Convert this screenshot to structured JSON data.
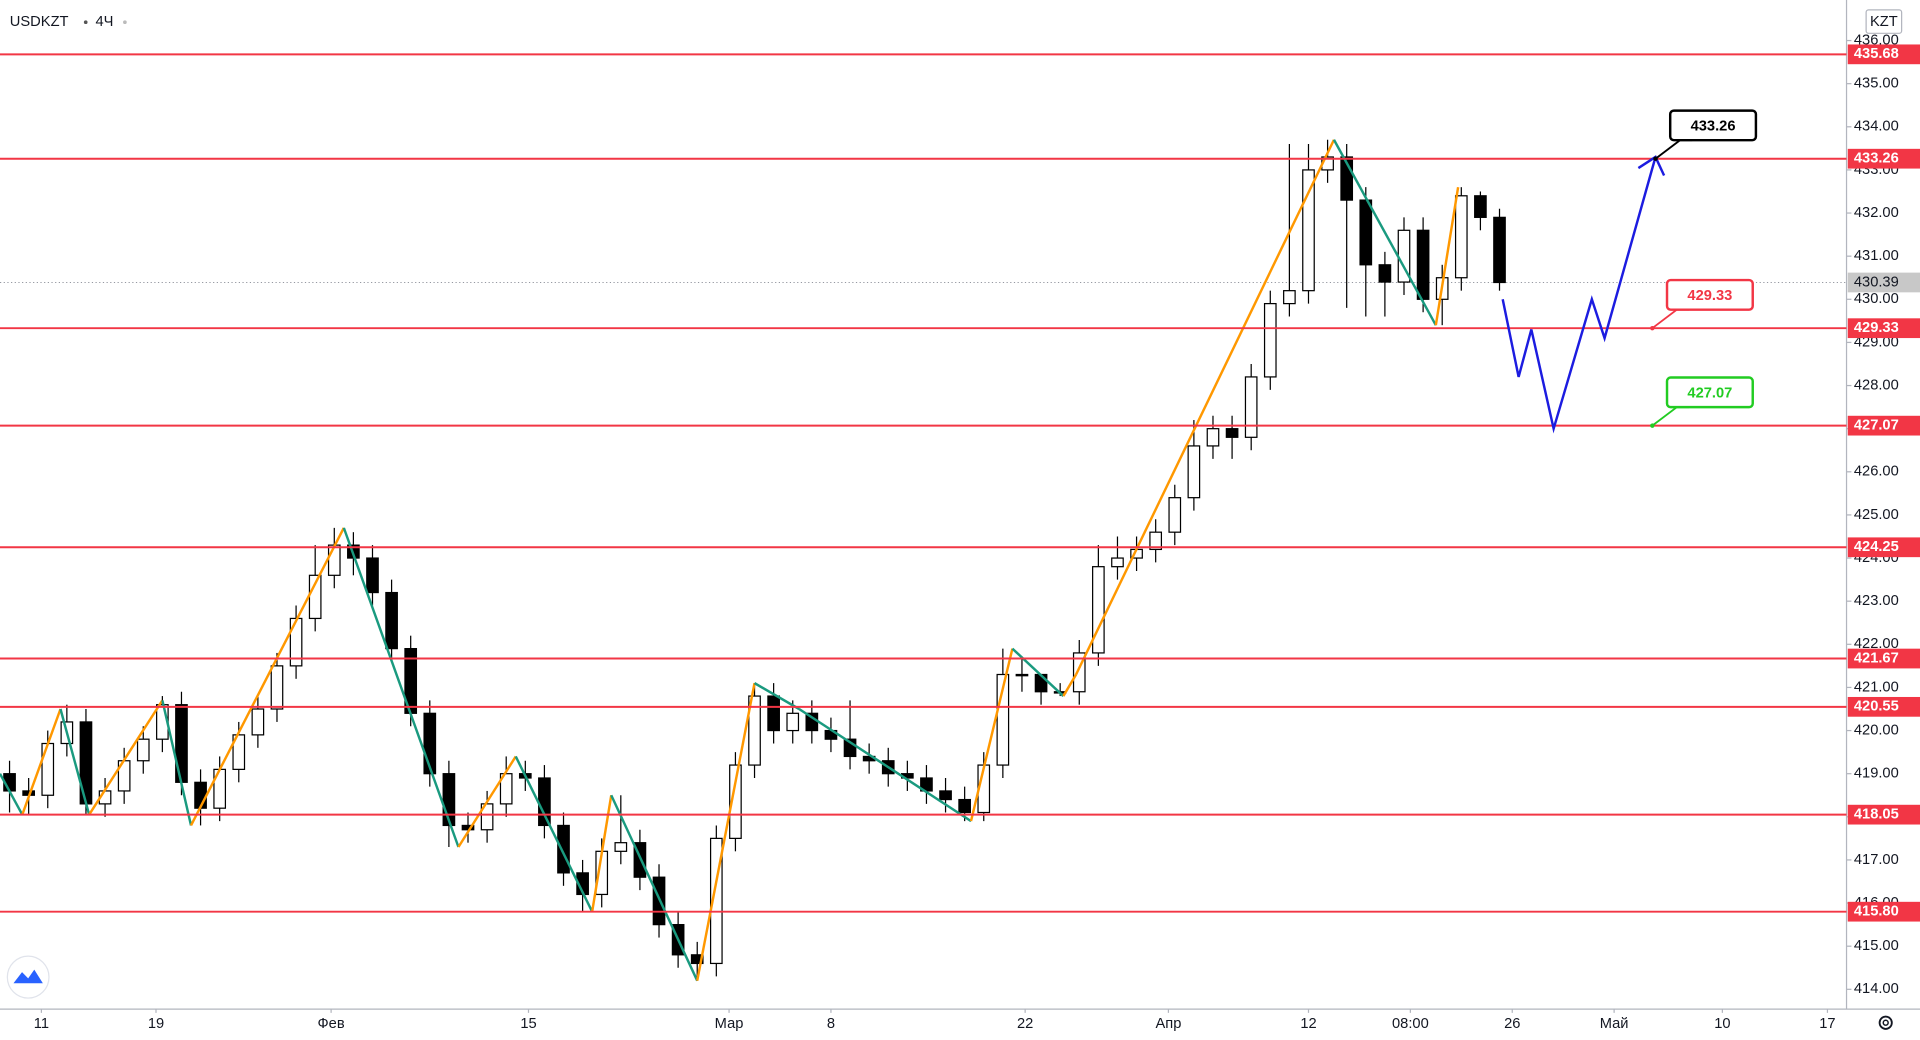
{
  "chart_data": {
    "type": "candlestick",
    "title": "USDKZT",
    "interval": "4Ч",
    "currency": "KZT",
    "x": [
      3,
      9,
      15,
      21,
      27,
      33,
      39,
      45,
      51,
      57,
      63,
      69,
      75,
      81,
      87,
      93,
      99,
      105,
      111,
      117,
      123,
      129,
      135,
      141,
      147,
      153,
      159,
      165,
      171,
      177,
      183,
      189,
      195,
      201,
      207,
      213,
      219,
      225,
      231,
      237,
      243,
      249,
      255,
      261,
      267,
      273,
      279,
      285,
      291,
      297,
      303,
      309,
      315,
      321,
      327,
      333,
      339,
      345,
      351,
      357,
      363,
      369,
      375,
      381,
      387,
      393,
      399,
      405,
      411,
      417,
      423,
      429,
      435,
      441,
      447,
      453,
      459,
      465,
      471
    ],
    "open": [
      419.0,
      418.6,
      418.5,
      419.7,
      420.2,
      418.3,
      418.6,
      419.3,
      419.8,
      420.6,
      418.8,
      418.2,
      419.1,
      419.9,
      420.5,
      421.5,
      422.6,
      423.6,
      424.3,
      424.0,
      423.2,
      421.9,
      420.4,
      419.0,
      417.8,
      417.7,
      418.3,
      419.0,
      418.9,
      417.8,
      416.7,
      416.2,
      417.2,
      417.4,
      416.6,
      415.5,
      414.8,
      414.6,
      417.5,
      419.2,
      420.8,
      420.0,
      420.4,
      420.0,
      419.8,
      419.4,
      419.3,
      419.0,
      418.9,
      418.6,
      418.4,
      418.1,
      419.2,
      421.3,
      421.3,
      420.9,
      420.9,
      421.8,
      423.8,
      424.0,
      424.2,
      424.6,
      425.4,
      426.6,
      427.0,
      426.8,
      428.2,
      429.9,
      430.2,
      433.0,
      433.3,
      432.3,
      430.8,
      430.4,
      431.6,
      430.0,
      430.5,
      432.4,
      431.9
    ],
    "high": [
      419.3,
      418.9,
      420.0,
      420.6,
      420.5,
      418.9,
      419.6,
      420.1,
      420.8,
      420.9,
      419.1,
      419.4,
      420.2,
      420.8,
      421.8,
      422.9,
      424.3,
      424.7,
      424.6,
      424.3,
      423.5,
      422.2,
      420.7,
      419.3,
      418.1,
      418.6,
      419.4,
      419.3,
      419.2,
      418.1,
      417.0,
      417.5,
      418.5,
      417.7,
      416.9,
      415.8,
      415.1,
      417.8,
      419.5,
      421.1,
      421.1,
      420.7,
      420.7,
      420.3,
      420.7,
      419.7,
      419.6,
      419.3,
      419.2,
      418.9,
      418.7,
      419.5,
      421.9,
      421.7,
      421.3,
      421.1,
      422.1,
      424.3,
      424.5,
      424.5,
      424.9,
      425.7,
      427.2,
      427.3,
      427.3,
      428.5,
      430.2,
      433.6,
      433.6,
      433.7,
      433.6,
      432.6,
      431.1,
      431.9,
      431.9,
      430.8,
      432.6,
      432.5,
      432.1
    ],
    "low": [
      418.1,
      418.05,
      418.2,
      419.4,
      418.05,
      418.0,
      418.3,
      419.0,
      419.5,
      418.5,
      417.8,
      417.9,
      418.8,
      419.6,
      420.2,
      421.2,
      422.3,
      423.3,
      423.6,
      422.9,
      421.6,
      420.1,
      418.7,
      417.3,
      417.4,
      417.4,
      418.0,
      418.6,
      417.5,
      416.4,
      415.8,
      415.9,
      416.9,
      416.3,
      415.2,
      414.5,
      414.2,
      414.3,
      417.2,
      418.9,
      419.7,
      419.7,
      419.7,
      419.5,
      419.1,
      419.0,
      418.7,
      418.6,
      418.3,
      418.1,
      417.9,
      417.9,
      418.9,
      420.9,
      420.6,
      420.8,
      420.6,
      421.5,
      423.5,
      423.7,
      423.9,
      424.3,
      425.1,
      426.3,
      426.3,
      426.5,
      427.9,
      429.6,
      429.9,
      432.7,
      429.8,
      429.6,
      429.6,
      430.1,
      429.7,
      429.4,
      430.2,
      431.6,
      430.2
    ],
    "close": [
      418.6,
      418.5,
      419.7,
      420.2,
      418.3,
      418.6,
      419.3,
      419.8,
      420.6,
      418.8,
      418.2,
      419.1,
      419.9,
      420.5,
      421.5,
      422.6,
      423.6,
      424.3,
      424.0,
      423.2,
      421.9,
      420.4,
      419.0,
      417.8,
      417.7,
      418.3,
      419.0,
      418.9,
      417.8,
      416.7,
      416.2,
      417.2,
      417.4,
      416.6,
      415.5,
      414.8,
      414.6,
      417.5,
      419.2,
      420.8,
      420.0,
      420.4,
      420.0,
      419.8,
      419.4,
      419.3,
      419.0,
      418.9,
      418.6,
      418.4,
      418.1,
      419.2,
      421.3,
      421.3,
      420.9,
      420.9,
      421.8,
      423.8,
      424.0,
      424.2,
      424.6,
      425.4,
      426.6,
      427.0,
      426.8,
      428.2,
      429.9,
      430.2,
      433.0,
      433.3,
      432.3,
      430.8,
      430.4,
      431.6,
      430.0,
      430.5,
      432.4,
      431.9,
      430.39
    ],
    "up_color": "#ffffff",
    "down_color": "#000000",
    "border_color": "#000000",
    "xlim": [
      0,
      580
    ],
    "xticks": [
      {
        "value": 13,
        "label": "11"
      },
      {
        "value": 49,
        "label": "19"
      },
      {
        "value": 104,
        "label": "Фев"
      },
      {
        "value": 166,
        "label": "15"
      },
      {
        "value": 229,
        "label": "Мар"
      },
      {
        "value": 261,
        "label": "8"
      },
      {
        "value": 322,
        "label": "22"
      },
      {
        "value": 367,
        "label": "Апр"
      },
      {
        "value": 411,
        "label": "12"
      },
      {
        "value": 443,
        "label": "08:00"
      },
      {
        "value": 475,
        "label": "26"
      },
      {
        "value": 507,
        "label": "Май"
      },
      {
        "value": 541,
        "label": "10"
      },
      {
        "value": 574,
        "label": "17"
      }
    ],
    "ylim": [
      413.54,
      436.94
    ],
    "yticks": [
      {
        "value": 414,
        "label": "414.00"
      },
      {
        "value": 415,
        "label": "415.00"
      },
      {
        "value": 416,
        "label": "416.00"
      },
      {
        "value": 417,
        "label": "417.00"
      },
      {
        "value": 418,
        "label": "418.00"
      },
      {
        "value": 419,
        "label": "419.00"
      },
      {
        "value": 420,
        "label": "420.00"
      },
      {
        "value": 421,
        "label": "421.00"
      },
      {
        "value": 422,
        "label": "422.00"
      },
      {
        "value": 423,
        "label": "423.00"
      },
      {
        "value": 424,
        "label": "424.00"
      },
      {
        "value": 425,
        "label": "425.00"
      },
      {
        "value": 426,
        "label": "426.00"
      },
      {
        "value": 427,
        "label": "427.00"
      },
      {
        "value": 428,
        "label": "428.00"
      },
      {
        "value": 429,
        "label": "429.00"
      },
      {
        "value": 430,
        "label": "430.00"
      },
      {
        "value": 431,
        "label": "431.00"
      },
      {
        "value": 432,
        "label": "432.00"
      },
      {
        "value": 433,
        "label": "433.00"
      },
      {
        "value": 434,
        "label": "434.00"
      },
      {
        "value": 435,
        "label": "435.00"
      },
      {
        "value": 436,
        "label": "436.00"
      }
    ],
    "levels": {
      "color": "#f23645",
      "values": [
        435.68,
        433.26,
        429.33,
        427.07,
        424.25,
        421.67,
        420.55,
        418.05,
        {
          "value": 415.8,
          "label": "415.80"
        }
      ]
    },
    "last_price": {
      "value": 430.39,
      "color": "#c8c8c8"
    },
    "zigzag": {
      "up_color": "#ff9800",
      "down_color": "#1a9a7f",
      "x": [
        0,
        7,
        19,
        28,
        51,
        60,
        108,
        144,
        162,
        186,
        192,
        219,
        237,
        251,
        305,
        318,
        334,
        338,
        419,
        451,
        458
      ],
      "values": [
        419.0,
        418.05,
        420.5,
        418.05,
        420.7,
        417.8,
        424.7,
        417.3,
        419.4,
        415.8,
        418.5,
        414.2,
        421.1,
        420.5,
        417.9,
        421.9,
        420.8,
        421.3,
        433.7,
        429.4,
        432.6
      ]
    },
    "projection": {
      "color": "#1c1ce0",
      "x": [
        472,
        477,
        481,
        488,
        500,
        504,
        520
      ],
      "values": [
        430.0,
        428.2,
        429.3,
        427.0,
        430.0,
        429.1,
        433.3
      ]
    },
    "callouts": [
      {
        "x": 520,
        "value": 433.26,
        "color": "#000000"
      },
      {
        "x": 519,
        "value": 429.33,
        "color": "#f23645"
      },
      {
        "x": 519,
        "value": 427.07,
        "color": "#22cc22"
      }
    ]
  }
}
